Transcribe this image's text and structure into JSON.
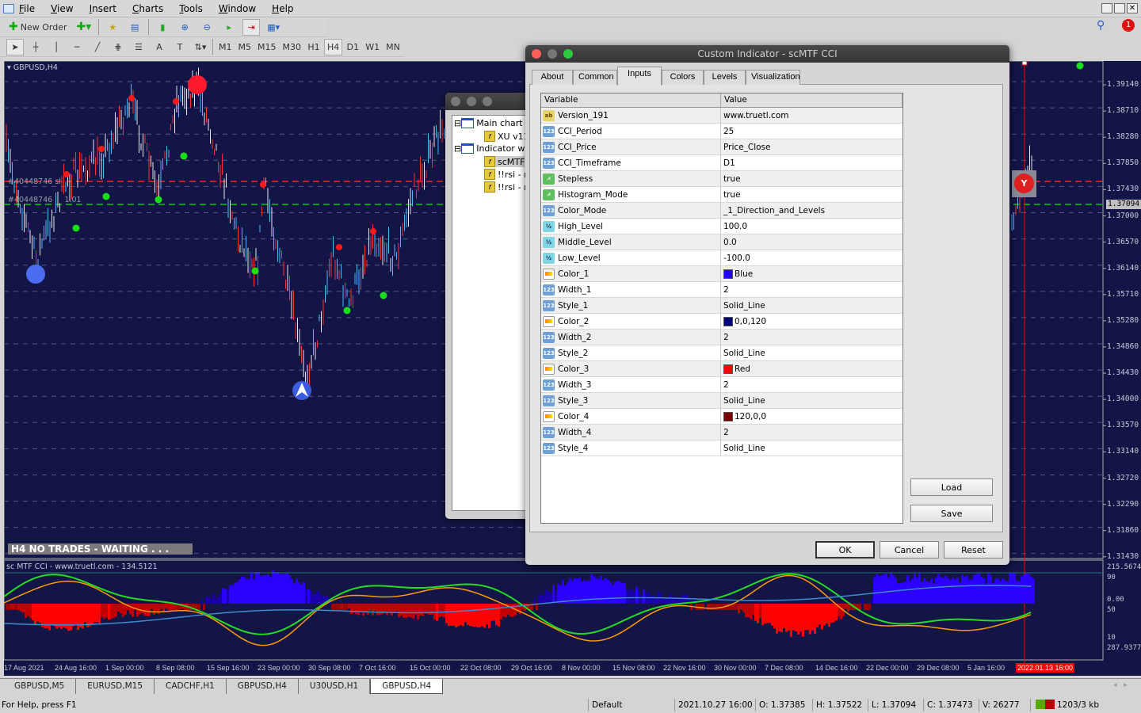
{
  "menu": [
    "File",
    "View",
    "Insert",
    "Charts",
    "Tools",
    "Window",
    "Help"
  ],
  "toolbar": {
    "new_order": "New Order",
    "timeframes": [
      "M1",
      "M5",
      "M15",
      "M30",
      "H1",
      "H4",
      "D1",
      "W1",
      "MN"
    ],
    "selected_timeframe": "H4",
    "notification_count": "1"
  },
  "chart": {
    "title": "GBPUSD,H4",
    "order_label_1": "#40448746 sl",
    "order_label_2": "#40448746",
    "order_label_2b": "1.01",
    "price_ticks": [
      "1.39140",
      "1.38710",
      "1.38280",
      "1.37850",
      "1.37430",
      "1.37000",
      "1.36570",
      "1.36140",
      "1.35710",
      "1.35280",
      "1.34860",
      "1.34430",
      "1.34000",
      "1.33570",
      "1.33140",
      "1.32720",
      "1.32290",
      "1.31860",
      "1.31430"
    ],
    "current_price": "1.37094",
    "banner": "H4  NO TRADES - WAITING . . .",
    "indicator_title": "sc MTF CCI - www.truetl.com - 134.5121",
    "indicator_levels": [
      "215.5674",
      "90",
      "0.00",
      "50",
      "10",
      "287.9377"
    ],
    "dates": [
      "17 Aug 2021",
      "24 Aug 16:00",
      "1 Sep 00:00",
      "8 Sep 08:00",
      "15 Sep 16:00",
      "23 Sep 00:00",
      "30 Sep 08:00",
      "7 Oct 16:00",
      "15 Oct 00:00",
      "22 Oct 08:00",
      "29 Oct 16:00",
      "8 Nov 00:00",
      "15 Nov 08:00",
      "22 Nov 16:00",
      "30 Nov 00:00",
      "7 Dec 08:00",
      "14 Dec 16:00",
      "22 Dec 00:00",
      "29 Dec 08:00",
      "5 Jan 16:00"
    ],
    "cursor_date": "2022.01.13 16:00",
    "colors": {
      "background": "#131546",
      "sell_line": "#ff2020",
      "buy_line": "#00cc00",
      "cursor_line": "#ff0000"
    }
  },
  "navigator": {
    "items": [
      "Main chart",
      "XU v11",
      "Indicator w",
      "scMTF",
      "!!rsi - r",
      "!!rsi - r"
    ]
  },
  "dialog": {
    "title": "Custom Indicator - scMTF CCI",
    "tabs": [
      "About",
      "Common",
      "Inputs",
      "Colors",
      "Levels",
      "Visualization"
    ],
    "active_tab": "Inputs",
    "columns": [
      "Variable",
      "Value"
    ],
    "rows": [
      {
        "icon": "ab",
        "name": "Version_191",
        "value": "www.truetl.com"
      },
      {
        "icon": "n123",
        "name": "CCI_Period",
        "value": "25"
      },
      {
        "icon": "n123",
        "name": "CCI_Price",
        "value": "Price_Close"
      },
      {
        "icon": "n123",
        "name": "CCI_Timeframe",
        "value": "D1"
      },
      {
        "icon": "chart",
        "name": "Stepless",
        "value": "true"
      },
      {
        "icon": "chart",
        "name": "Histogram_Mode",
        "value": "true"
      },
      {
        "icon": "n123",
        "name": "Color_Mode",
        "value": "_1_Direction_and_Levels"
      },
      {
        "icon": "half",
        "name": "High_Level",
        "value": "100.0"
      },
      {
        "icon": "half",
        "name": "Middle_Level",
        "value": "0.0"
      },
      {
        "icon": "half",
        "name": "Low_Level",
        "value": "-100.0"
      },
      {
        "icon": "color",
        "name": "Color_1",
        "value": "Blue",
        "swatch": "#2200ff"
      },
      {
        "icon": "n123",
        "name": "Width_1",
        "value": "2"
      },
      {
        "icon": "n123",
        "name": "Style_1",
        "value": "Solid_Line"
      },
      {
        "icon": "color",
        "name": "Color_2",
        "value": "0,0,120",
        "swatch": "#000078"
      },
      {
        "icon": "n123",
        "name": "Width_2",
        "value": "2"
      },
      {
        "icon": "n123",
        "name": "Style_2",
        "value": "Solid_Line"
      },
      {
        "icon": "color",
        "name": "Color_3",
        "value": "Red",
        "swatch": "#ff0000"
      },
      {
        "icon": "n123",
        "name": "Width_3",
        "value": "2"
      },
      {
        "icon": "n123",
        "name": "Style_3",
        "value": "Solid_Line"
      },
      {
        "icon": "color",
        "name": "Color_4",
        "value": "120,0,0",
        "swatch": "#780000"
      },
      {
        "icon": "n123",
        "name": "Width_4",
        "value": "2"
      },
      {
        "icon": "n123",
        "name": "Style_4",
        "value": "Solid_Line"
      }
    ],
    "load": "Load",
    "save": "Save",
    "ok": "OK",
    "cancel": "Cancel",
    "reset": "Reset"
  },
  "chart_tabs": [
    "GBPUSD,M5",
    "EURUSD,M15",
    "CADCHF,H1",
    "GBPUSD,H4",
    "U30USD,H1",
    "GBPUSD,H4"
  ],
  "active_chart_tab": 5,
  "status": {
    "help": "For Help, press F1",
    "profile": "Default",
    "datetime": "2021.10.27 16:00",
    "open": "O: 1.37385",
    "high": "H: 1.37522",
    "low": "L: 1.37094",
    "close": "C: 1.37473",
    "volume": "V: 26277",
    "traffic": "1203/3 kb"
  }
}
